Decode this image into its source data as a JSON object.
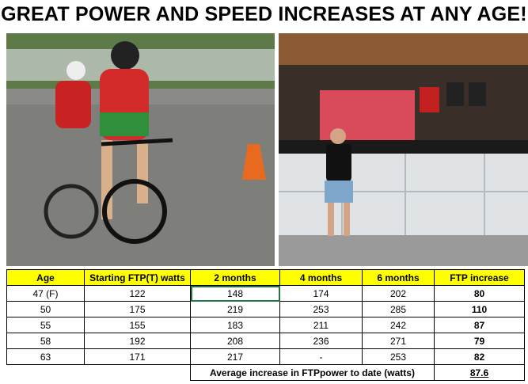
{
  "header": {
    "title": "GREAT POWER AND SPEED INCREASES AT ANY AGE!"
  },
  "table": {
    "columns": [
      "Age",
      "Starting FTP(T) watts",
      "2  months",
      "4 months",
      "6 months",
      "FTP increase"
    ],
    "rows": [
      [
        "47 (F)",
        122,
        148,
        174,
        202,
        80
      ],
      [
        50,
        175,
        219,
        253,
        285,
        110
      ],
      [
        55,
        155,
        183,
        211,
        242,
        87
      ],
      [
        58,
        192,
        208,
        236,
        271,
        79
      ],
      [
        63,
        171,
        217,
        "-",
        253,
        82
      ]
    ],
    "footer": {
      "label": "Average increase in FTPpower to date (watts)",
      "value": 87.6
    }
  }
}
